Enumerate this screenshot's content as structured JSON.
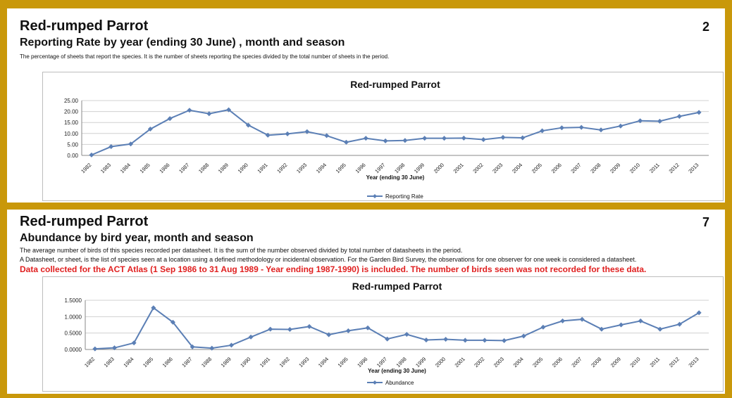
{
  "panel1": {
    "title": "Red-rumped Parrot",
    "page_number": "2",
    "subtitle": "Reporting Rate by year (ending 30 June) , month and season",
    "description": "The percentage of sheets that report the species. It is the number of sheets reporting the species divided by the total number of sheets in the period."
  },
  "panel2": {
    "title": "Red-rumped Parrot",
    "page_number": "7",
    "subtitle": "Abundance by bird year, month and season",
    "description_1": "The average number of birds of this species recorded per datasheet. It is the sum of the number observed divided by total number of datasheets in the period.",
    "description_2": "A Datasheet, or sheet, is the list of species seen at a location using a defined methodology or incidental observation. For the Garden Bird Survey, the observations for one observer for one week is considered a datasheet.",
    "note": "Data collected for the ACT Atlas (1 Sep 1986 to 31 Aug 1989 - Year ending 1987-1990) is included. The number of birds seen was not recorded for these data."
  },
  "colors": {
    "series": "#5b7fb5",
    "grid": "#d0d0d0",
    "frame": "#c9980a",
    "note": "#e02020"
  },
  "chart_data": [
    {
      "type": "line",
      "title": "Red-rumped Parrot",
      "xlabel": "Year (ending 30 June)",
      "ylabel": "",
      "ylim": [
        0,
        25
      ],
      "yticks": [
        "25.00",
        "20.00",
        "15.00",
        "10.00",
        "5.00",
        "0.00"
      ],
      "grid": true,
      "legend_position": "bottom",
      "categories": [
        "1982",
        "1983",
        "1984",
        "1985",
        "1986",
        "1987",
        "1988",
        "1989",
        "1990",
        "1991",
        "1992",
        "1993",
        "1994",
        "1995",
        "1996",
        "1997",
        "1998",
        "1999",
        "2000",
        "2001",
        "2002",
        "2003",
        "2004",
        "2005",
        "2006",
        "2007",
        "2008",
        "2009",
        "2010",
        "2011",
        "2012",
        "2013"
      ],
      "series": [
        {
          "name": "Reporting Rate",
          "values": [
            0.2,
            4.0,
            5.2,
            12.0,
            16.8,
            20.6,
            19.0,
            20.8,
            13.8,
            9.2,
            9.8,
            10.8,
            9.0,
            6.0,
            7.8,
            6.6,
            6.8,
            7.8,
            7.8,
            7.9,
            7.2,
            8.2,
            8.0,
            11.2,
            12.6,
            12.8,
            11.6,
            13.4,
            15.8,
            15.6,
            17.8,
            19.6
          ]
        }
      ]
    },
    {
      "type": "line",
      "title": "Red-rumped Parrot",
      "xlabel": "Year (ending 30 June)",
      "ylabel": "",
      "ylim": [
        0,
        1.5
      ],
      "yticks": [
        "1.5000",
        "1.0000",
        "0.5000",
        "0.0000"
      ],
      "grid": true,
      "legend_position": "bottom",
      "categories": [
        "1982",
        "1983",
        "1984",
        "1985",
        "1986",
        "1987",
        "1988",
        "1989",
        "1990",
        "1991",
        "1992",
        "1993",
        "1994",
        "1995",
        "1996",
        "1997",
        "1998",
        "1999",
        "2000",
        "2001",
        "2002",
        "2003",
        "2004",
        "2005",
        "2006",
        "2007",
        "2008",
        "2009",
        "2010",
        "2011",
        "2012",
        "2013"
      ],
      "series": [
        {
          "name": "Abundance",
          "values": [
            0.02,
            0.05,
            0.2,
            1.27,
            0.83,
            0.08,
            0.04,
            0.13,
            0.38,
            0.62,
            0.61,
            0.7,
            0.45,
            0.57,
            0.66,
            0.32,
            0.46,
            0.29,
            0.31,
            0.28,
            0.28,
            0.27,
            0.41,
            0.68,
            0.87,
            0.92,
            0.62,
            0.75,
            0.87,
            0.62,
            0.77,
            1.12
          ]
        }
      ]
    }
  ]
}
